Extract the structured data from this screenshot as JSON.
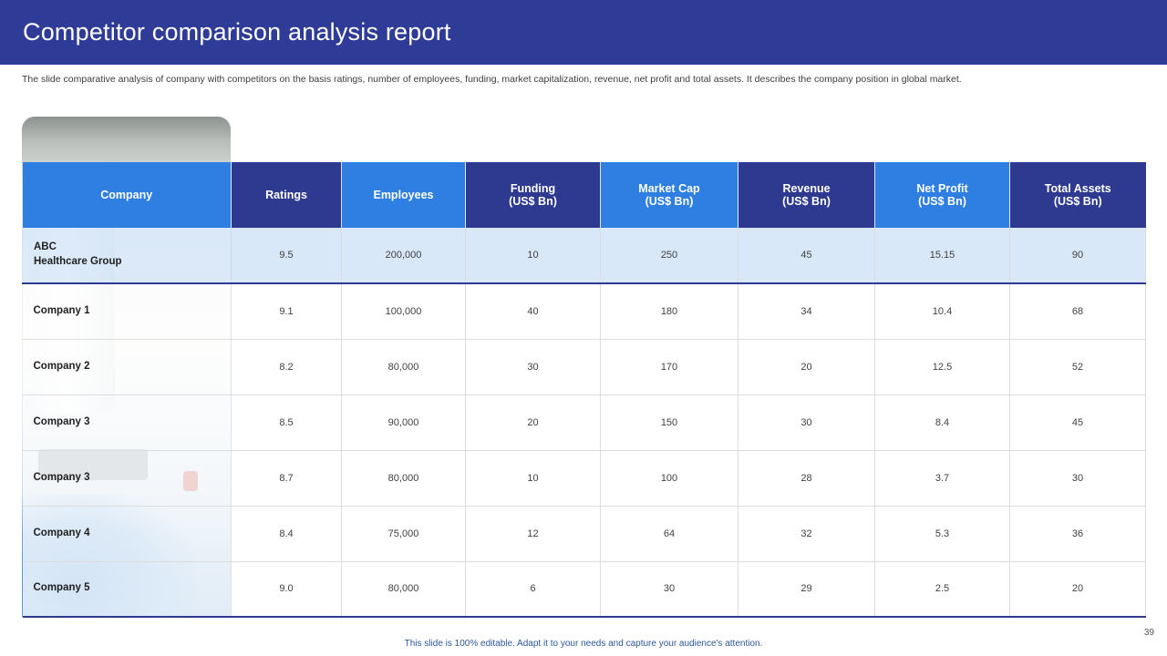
{
  "header": {
    "title": "Competitor comparison analysis report",
    "subtitle": "The slide comparative analysis of company with competitors on the basis ratings, number of employees, funding, market capitalization, revenue, net profit and total assets. It describes the company position in global market."
  },
  "table": {
    "columns": [
      "Company",
      "Ratings",
      "Employees",
      "Funding\n(US$ Bn)",
      "Market Cap\n(US$ Bn)",
      "Revenue\n(US$ Bn)",
      "Net Profit\n(US$ Bn)",
      "Total Assets\n(US$ Bn)"
    ],
    "rows": [
      {
        "company": "ABC\nHealthcare Group",
        "values": [
          "9.5",
          "200,000",
          "10",
          "250",
          "45",
          "15.15",
          "90"
        ],
        "highlight": true
      },
      {
        "company": "Company 1",
        "values": [
          "9.1",
          "100,000",
          "40",
          "180",
          "34",
          "10.4",
          "68"
        ],
        "highlight": false
      },
      {
        "company": "Company 2",
        "values": [
          "8.2",
          "80,000",
          "30",
          "170",
          "20",
          "12.5",
          "52"
        ],
        "highlight": false
      },
      {
        "company": "Company 3",
        "values": [
          "8.5",
          "90,000",
          "20",
          "150",
          "30",
          "8.4",
          "45"
        ],
        "highlight": false
      },
      {
        "company": "Company 3",
        "values": [
          "8.7",
          "80,000",
          "10",
          "100",
          "28",
          "3.7",
          "30"
        ],
        "highlight": false
      },
      {
        "company": "Company 4",
        "values": [
          "8.4",
          "75,000",
          "12",
          "64",
          "32",
          "5.3",
          "36"
        ],
        "highlight": false
      },
      {
        "company": "Company 5",
        "values": [
          "9.0",
          "80,000",
          "6",
          "30",
          "29",
          "2.5",
          "20"
        ],
        "highlight": false
      }
    ]
  },
  "footer": {
    "note": "This slide is 100% editable. Adapt it to your needs and capture your audience's attention.",
    "page_number": "39"
  },
  "colors": {
    "banner": "#2e3b97",
    "header_bright": "#2f7fe3",
    "header_dark": "#2d3a8f",
    "highlight_row": "#d9e8f9",
    "footer_text": "#2b579a"
  }
}
